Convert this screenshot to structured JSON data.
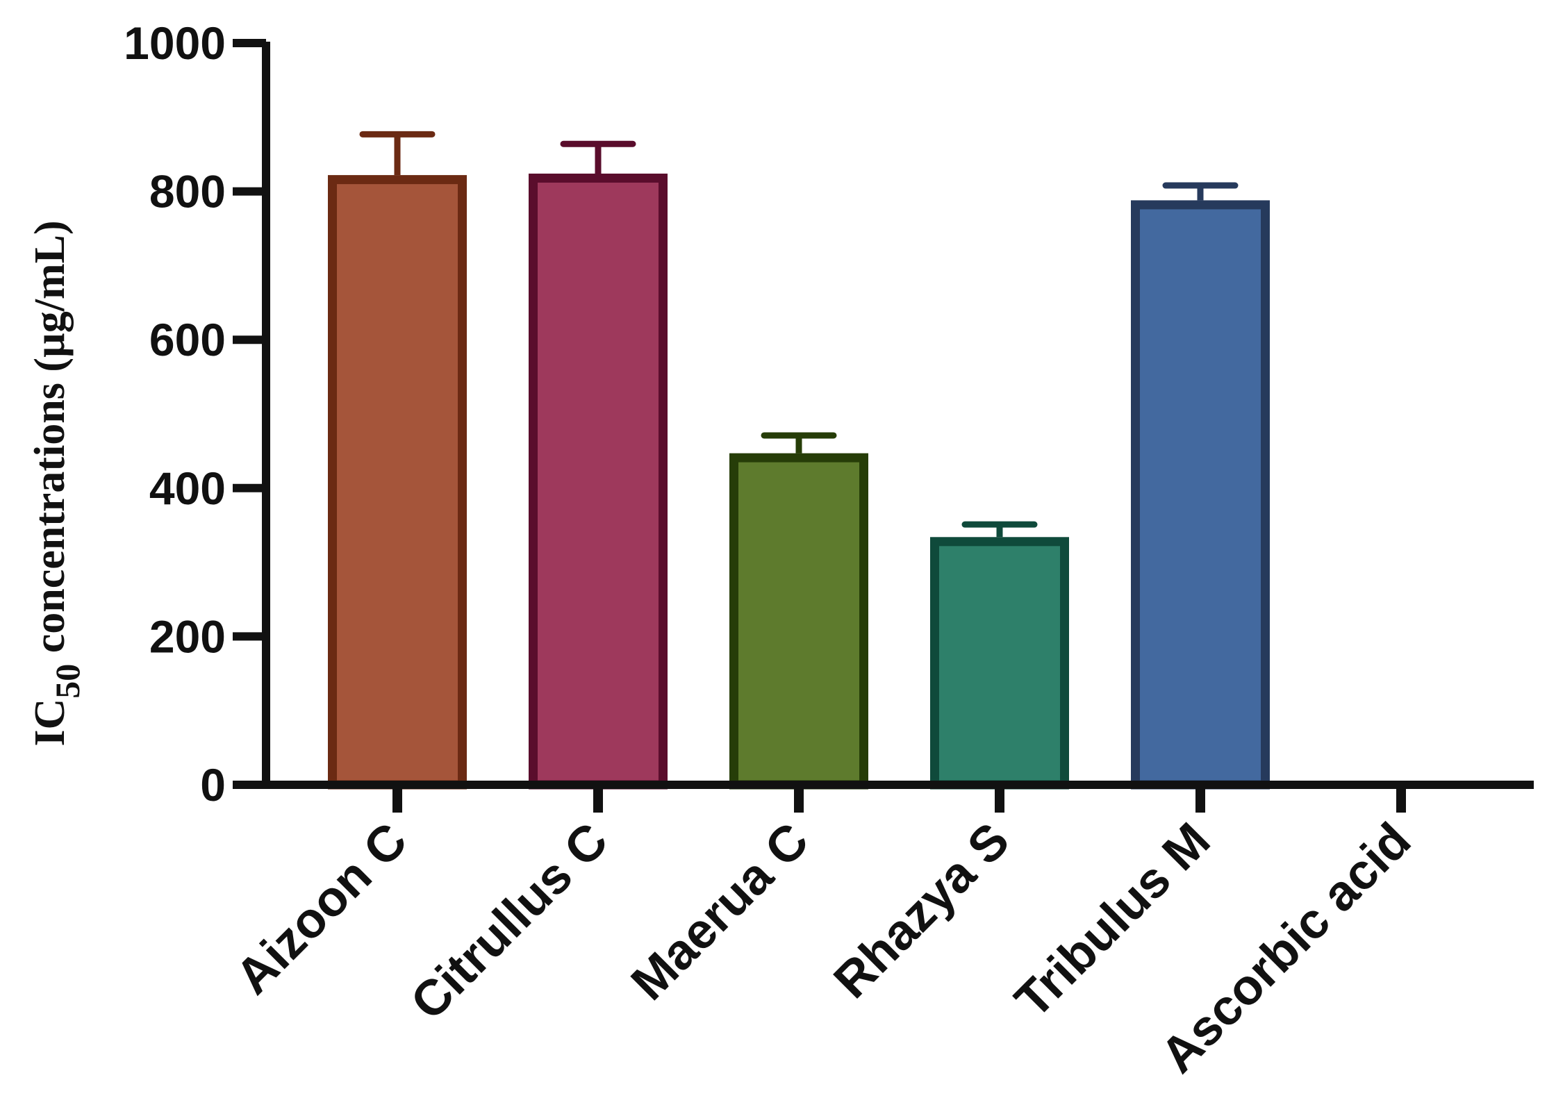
{
  "chart_data": {
    "type": "bar",
    "title": "",
    "xlabel": "",
    "ylabel": {
      "main": "IC",
      "subscript": "50",
      "rest": " concentrations (µg/mL)"
    },
    "categories": [
      "Aizoon C",
      "Citrullus C",
      "Maerua C",
      "Rhazya S",
      "Tribulus M",
      "Ascorbic acid"
    ],
    "values": [
      822,
      824,
      447,
      334,
      788,
      1
    ],
    "errors": [
      55,
      40,
      24,
      17,
      20,
      0
    ],
    "ylim": [
      0,
      1000
    ],
    "yticks": [
      "0",
      "200",
      "400",
      "600",
      "800",
      "1000"
    ],
    "grid": false,
    "legend": "none",
    "colors": {
      "fills": [
        "#A5553A",
        "#9E395C",
        "#5E7B2D",
        "#2E806A",
        "#43699F",
        "#C9512D"
      ],
      "strokes": [
        "#6B2A13",
        "#5A0D2C",
        "#263D08",
        "#0F4A3B",
        "#263A5C",
        "#8A2A0E"
      ],
      "axis": "#111111"
    }
  }
}
